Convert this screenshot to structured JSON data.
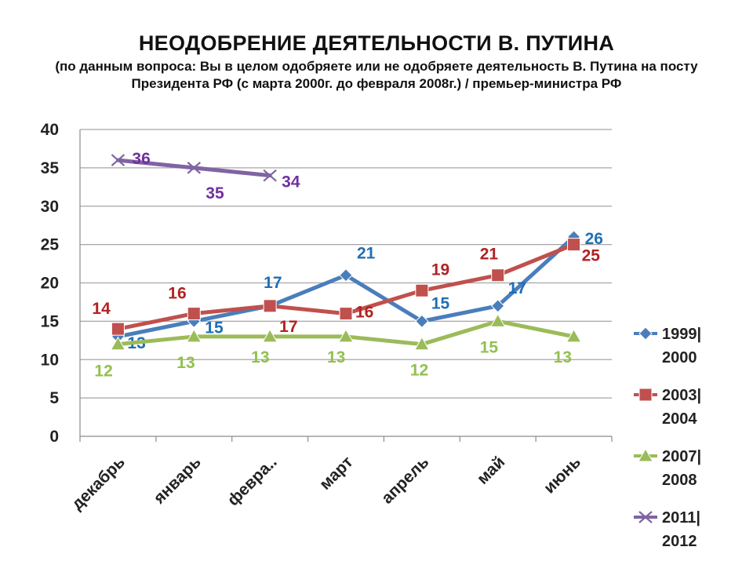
{
  "chart_data": {
    "type": "line",
    "title": "НЕОДОБРЕНИЕ ДЕЯТЕЛЬНОСТИ В. ПУТИНА",
    "subtitle": "(по данным вопроса: Вы в целом одобряете или не одобряете деятельность В. Путина на посту Президента РФ (с марта 2000г. до февраля 2008г.) / премьер-министра РФ",
    "categories": [
      "декабрь",
      "январь",
      "февра..",
      "март",
      "апрель",
      "май",
      "июнь"
    ],
    "ylim": [
      0,
      40
    ],
    "yticks": [
      "0",
      "5",
      "10",
      "15",
      "20",
      "25",
      "30",
      "35",
      "40"
    ],
    "grid": true,
    "legend_position": "right",
    "series": [
      {
        "name": "1999|2000",
        "legend_lines": [
          "1999|",
          "2000"
        ],
        "color": "#4a7ebb",
        "label_color": "#1f6fb5",
        "marker": "diamond",
        "values": [
          13,
          15,
          17,
          21,
          15,
          17,
          26
        ]
      },
      {
        "name": "2003|2004",
        "legend_lines": [
          "2003|",
          "2004"
        ],
        "color": "#c0504d",
        "label_color": "#b22222",
        "marker": "square",
        "values": [
          14,
          16,
          17,
          16,
          19,
          21,
          25
        ]
      },
      {
        "name": "2007|2008",
        "legend_lines": [
          "2007|",
          "2008"
        ],
        "color": "#9bbb59",
        "label_color": "#92c050",
        "marker": "triangle",
        "values": [
          12,
          13,
          13,
          13,
          12,
          15,
          13
        ]
      },
      {
        "name": "2011|2012",
        "legend_lines": [
          "2011|",
          "2012"
        ],
        "color": "#8064a2",
        "label_color": "#7030a0",
        "marker": "x",
        "values": [
          36,
          35,
          34,
          null,
          null,
          null,
          null
        ]
      }
    ]
  }
}
